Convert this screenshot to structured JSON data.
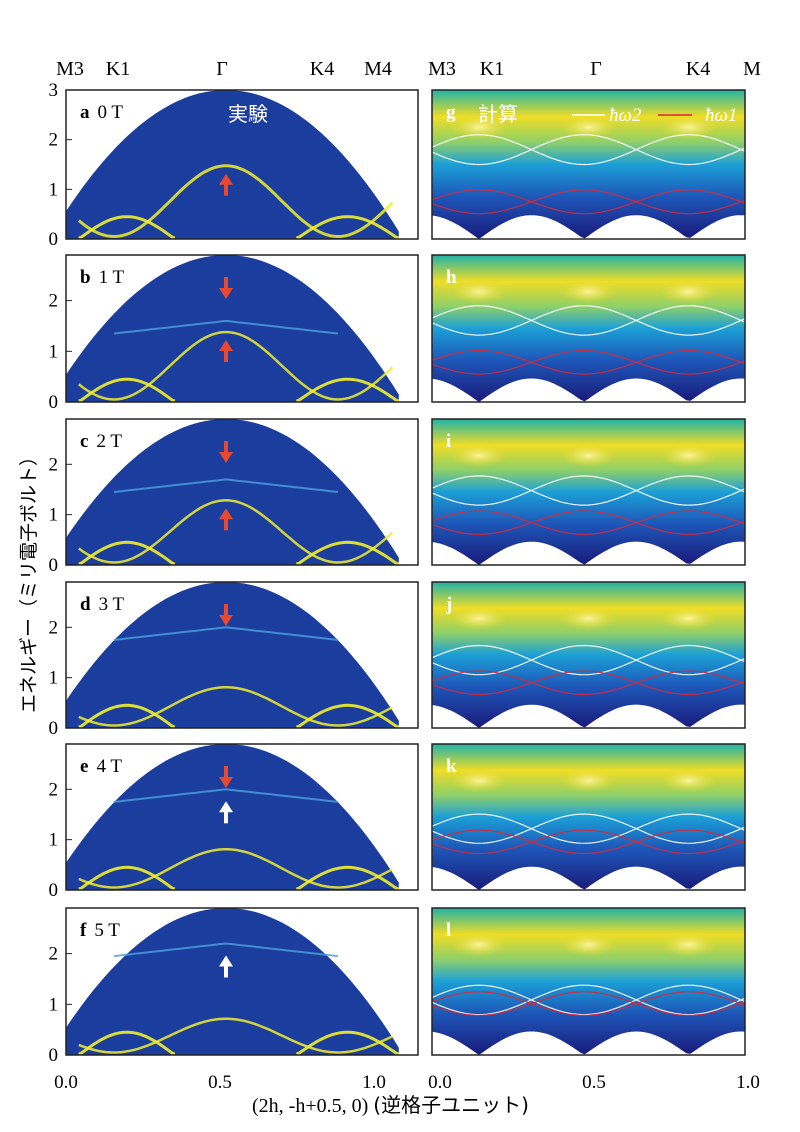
{
  "figure": {
    "top_labels_left": [
      "M3",
      "K1",
      "Γ",
      "K4",
      "M4"
    ],
    "top_labels_right": [
      "M3",
      "K1",
      "Γ",
      "K4",
      "M"
    ],
    "ylabel": "エネルギー（ミリ電子ボルト）",
    "xlabel_math": "(2h, -h+0.5, 0)",
    "xlabel_unit": "(逆格子ユニット)",
    "experiment_label": "実験",
    "calc_label": "計算",
    "legend": [
      "ħω2",
      "ħω1"
    ]
  },
  "chart_data": {
    "type": "heatmap",
    "colors": {
      "background": "#1a3d9e",
      "band": "#f2ee2a",
      "calc_high": "#f0dd26",
      "arrow_red": "#e8492e",
      "arrow_white": "#ffffff",
      "calc_line_white": "#ffffff",
      "calc_line_red": "#d8283a"
    },
    "left_panels": [
      {
        "letter": "a",
        "field": "0 T",
        "xlim": [
          0.0,
          1.1
        ],
        "ylim": [
          0,
          3
        ],
        "yticks": [
          0,
          1,
          2,
          3
        ],
        "arrows": [
          {
            "x": 0.5,
            "dir": "up",
            "color": "red"
          }
        ]
      },
      {
        "letter": "b",
        "field": "1 T",
        "xlim": [
          0.0,
          1.1
        ],
        "ylim": [
          0,
          2.9
        ],
        "yticks": [
          0,
          1,
          2
        ],
        "arrows": [
          {
            "x": 0.5,
            "dir": "down",
            "color": "red"
          },
          {
            "x": 0.5,
            "dir": "up",
            "color": "red"
          }
        ]
      },
      {
        "letter": "c",
        "field": "2 T",
        "xlim": [
          0.0,
          1.1
        ],
        "ylim": [
          0,
          2.9
        ],
        "yticks": [
          0,
          1,
          2
        ],
        "arrows": [
          {
            "x": 0.5,
            "dir": "down",
            "color": "red"
          },
          {
            "x": 0.5,
            "dir": "up",
            "color": "red"
          }
        ]
      },
      {
        "letter": "d",
        "field": "3 T",
        "xlim": [
          0.0,
          1.1
        ],
        "ylim": [
          0,
          2.9
        ],
        "yticks": [
          0,
          1,
          2
        ],
        "arrows": [
          {
            "x": 0.5,
            "dir": "down",
            "color": "red"
          }
        ]
      },
      {
        "letter": "e",
        "field": "4 T",
        "xlim": [
          0.0,
          1.1
        ],
        "ylim": [
          0,
          2.9
        ],
        "yticks": [
          0,
          1,
          2
        ],
        "arrows": [
          {
            "x": 0.5,
            "dir": "down",
            "color": "red"
          },
          {
            "x": 0.5,
            "dir": "up",
            "color": "white"
          }
        ]
      },
      {
        "letter": "f",
        "field": "5 T",
        "xlim": [
          0.0,
          1.1
        ],
        "ylim": [
          0,
          2.9
        ],
        "yticks": [
          0,
          1,
          2
        ],
        "arrows": [
          {
            "x": 0.5,
            "dir": "up",
            "color": "white"
          }
        ]
      }
    ],
    "right_panels": [
      {
        "letter": "g",
        "xlim": [
          0.0,
          1.0
        ]
      },
      {
        "letter": "h",
        "xlim": [
          0.0,
          1.0
        ]
      },
      {
        "letter": "i",
        "xlim": [
          0.0,
          1.0
        ]
      },
      {
        "letter": "j",
        "xlim": [
          0.0,
          1.0
        ]
      },
      {
        "letter": "k",
        "xlim": [
          0.0,
          1.0
        ]
      },
      {
        "letter": "l",
        "xlim": [
          0.0,
          1.0
        ]
      }
    ],
    "left_xticks": [
      "0.0",
      "0.5",
      "1.0"
    ],
    "right_xticks": [
      "0.0",
      "0.5",
      "1.0"
    ],
    "band_energies_at_gamma": [
      1.5,
      1.4,
      1.3,
      0.8,
      0.8,
      0.7
    ],
    "upper_band_energies": [
      null,
      1.6,
      1.7,
      2.0,
      2.0,
      2.2
    ]
  }
}
